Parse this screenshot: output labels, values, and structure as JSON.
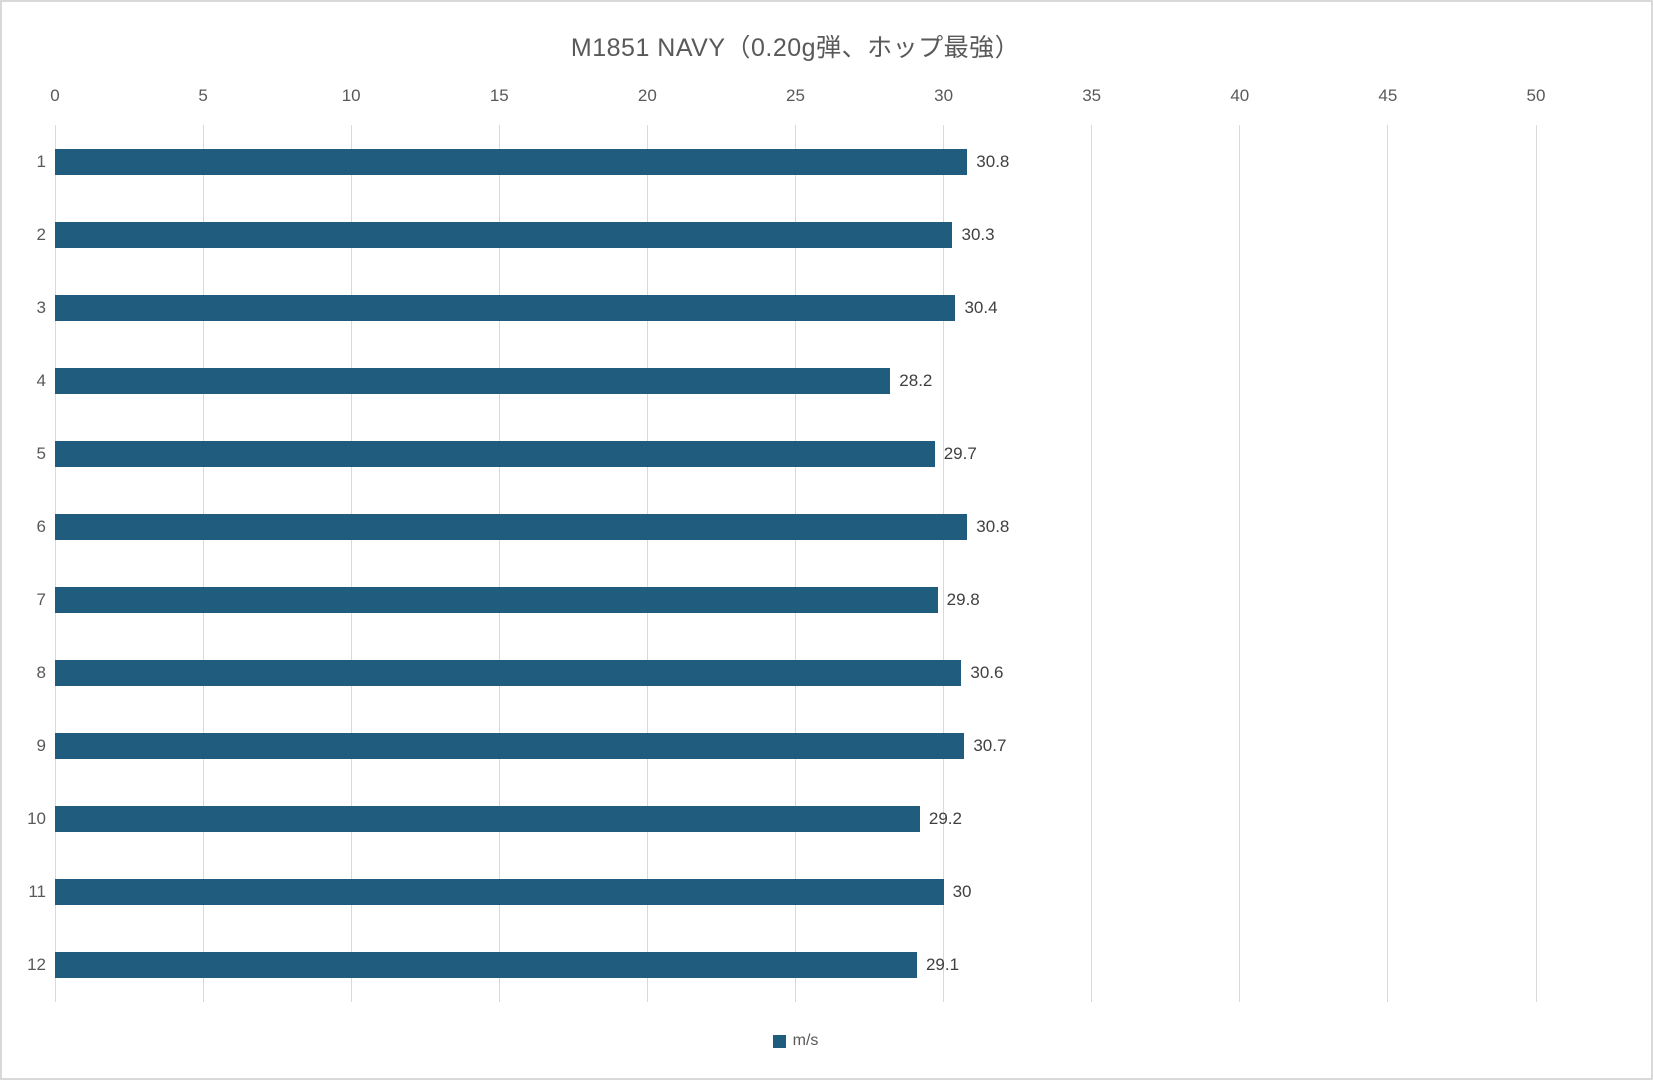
{
  "chart_data": {
    "type": "bar",
    "orientation": "horizontal",
    "title": "M1851 NAVY（0.20g弾、ホップ最強）",
    "categories": [
      "1",
      "2",
      "3",
      "4",
      "5",
      "6",
      "7",
      "8",
      "9",
      "10",
      "11",
      "12"
    ],
    "values": [
      30.8,
      30.3,
      30.4,
      28.2,
      29.7,
      30.8,
      29.8,
      30.6,
      30.7,
      29.2,
      30,
      29.1
    ],
    "value_labels": [
      "30.8",
      "30.3",
      "30.4",
      "28.2",
      "29.7",
      "30.8",
      "29.8",
      "30.6",
      "30.7",
      "29.2",
      "30",
      "29.1"
    ],
    "xlabel": "",
    "ylabel": "",
    "xlim": [
      0,
      50
    ],
    "tick_step": 5,
    "tick_labels": [
      "0",
      "5",
      "10",
      "15",
      "20",
      "25",
      "30",
      "35",
      "40",
      "45",
      "50"
    ],
    "grid": "vertical",
    "legend_position": "bottom",
    "legend": [
      {
        "label": "m/s",
        "color": "#1f5c7d"
      }
    ],
    "colors": {
      "bar": "#1f5c7d",
      "grid": "#d9d9d9",
      "axis_text": "#595959",
      "data_label": "#404040",
      "border": "#d9d9d9"
    }
  }
}
